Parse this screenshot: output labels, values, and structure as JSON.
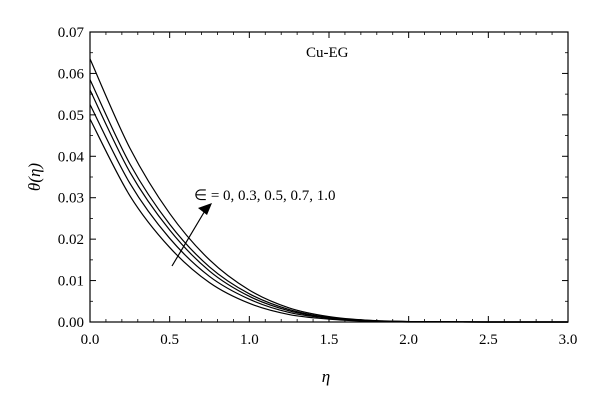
{
  "chart_data": {
    "type": "line",
    "xlabel": "η",
    "ylabel": "θ(η)",
    "xlim": [
      0,
      3.0
    ],
    "ylim": [
      0,
      0.07
    ],
    "x_ticks": [
      "0.0",
      "0.5",
      "1.0",
      "1.5",
      "2.0",
      "2.5",
      "3.0"
    ],
    "y_ticks": [
      "0.00",
      "0.01",
      "0.02",
      "0.03",
      "0.04",
      "0.05",
      "0.06",
      "0.07"
    ],
    "grid": false,
    "annotations": {
      "fluid": "Cu-EG",
      "parameter": "∈ = 0, 0.3, 0.5, 0.7, 1.0"
    },
    "x": [
      0.0,
      0.25,
      0.5,
      0.75,
      1.0,
      1.25,
      1.5,
      1.75,
      2.0,
      2.5,
      3.0
    ],
    "series": [
      {
        "values": [
          0.049,
          0.0305,
          0.018,
          0.0095,
          0.0045,
          0.0018,
          0.0007,
          0.0002,
          0.0,
          0.0,
          0.0
        ]
      },
      {
        "values": [
          0.0525,
          0.0335,
          0.0202,
          0.011,
          0.0055,
          0.0023,
          0.0009,
          0.0003,
          0.0001,
          0.0,
          0.0
        ]
      },
      {
        "values": [
          0.056,
          0.0362,
          0.0222,
          0.0123,
          0.0062,
          0.0027,
          0.001,
          0.0003,
          0.0001,
          0.0,
          0.0
        ]
      },
      {
        "values": [
          0.0585,
          0.0382,
          0.0236,
          0.0133,
          0.0068,
          0.003,
          0.0011,
          0.0004,
          0.0001,
          0.0,
          0.0
        ]
      },
      {
        "values": [
          0.0635,
          0.042,
          0.0262,
          0.015,
          0.0077,
          0.0034,
          0.0013,
          0.0004,
          0.0001,
          0.0,
          0.0
        ]
      }
    ]
  }
}
